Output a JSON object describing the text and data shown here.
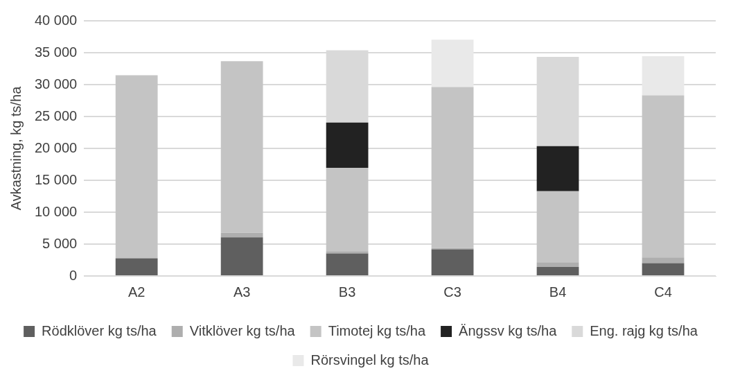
{
  "chart_data": {
    "type": "bar",
    "stacked": true,
    "ylabel": "Avkastning, kg ts/ha",
    "categories": [
      "A2",
      "A3",
      "B3",
      "C3",
      "B4",
      "C4"
    ],
    "series": [
      {
        "name": "Rödklöver kg ts/ha",
        "color": "#5f5f5f",
        "values": [
          2780,
          6070,
          3520,
          4190,
          1410,
          2000
        ]
      },
      {
        "name": "Vitklöver kg ts/ha",
        "color": "#aeaeae",
        "values": [
          0,
          700,
          370,
          190,
          740,
          900
        ]
      },
      {
        "name": "Timotej kg ts/ha",
        "color": "#c4c4c4",
        "values": [
          28700,
          26900,
          13070,
          25240,
          11140,
          25420
        ]
      },
      {
        "name": "Ängssv kg ts/ha",
        "color": "#222222",
        "values": [
          0,
          0,
          7080,
          0,
          7050,
          0
        ]
      },
      {
        "name": "Eng. rajg kg ts/ha",
        "color": "#d9d9d9",
        "values": [
          0,
          0,
          11330,
          0,
          14000,
          0
        ]
      },
      {
        "name": "Rörsvingel kg ts/ha",
        "color": "#e9e9e9",
        "values": [
          0,
          0,
          0,
          7420,
          0,
          6130
        ]
      }
    ],
    "ylim": [
      0,
      40000
    ],
    "yticks": [
      {
        "value": 0,
        "label": "0"
      },
      {
        "value": 5000,
        "label": "5 000"
      },
      {
        "value": 10000,
        "label": "10 000"
      },
      {
        "value": 15000,
        "label": "15 000"
      },
      {
        "value": 20000,
        "label": "20 000"
      },
      {
        "value": 25000,
        "label": "25 000"
      },
      {
        "value": 30000,
        "label": "30 000"
      },
      {
        "value": 35000,
        "label": "35 000"
      },
      {
        "value": 40000,
        "label": "40 000"
      }
    ],
    "grid": "y",
    "legend": "bottom"
  }
}
